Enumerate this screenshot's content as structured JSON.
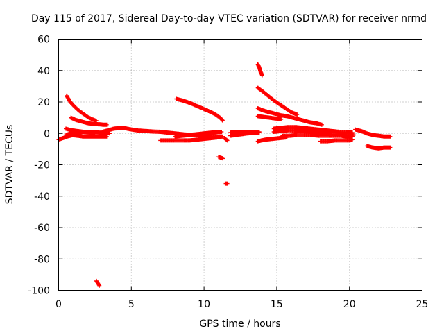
{
  "chart_data": {
    "type": "scatter",
    "title": "Day 115 of 2017, Sidereal Day-to-day VTEC variation (SDTVAR) for receiver nrmd",
    "xlabel": "GPS time / hours",
    "ylabel": "SDTVAR / TECUs",
    "xlim": [
      0,
      25
    ],
    "ylim": [
      -100,
      60
    ],
    "xticks": [
      0,
      5,
      10,
      15,
      20,
      25
    ],
    "yticks": [
      -100,
      -80,
      -60,
      -40,
      -20,
      0,
      20,
      40,
      60
    ],
    "grid": true,
    "legend": "none",
    "marker": "+",
    "color": "#ff0000",
    "segments": [
      {
        "x": [
          0.0,
          0.3,
          0.6,
          1.0
        ],
        "y": [
          -4,
          -3,
          -2,
          -1
        ]
      },
      {
        "x": [
          0.5,
          0.9,
          1.3,
          1.7,
          2.1,
          2.5
        ],
        "y": [
          3,
          2,
          1.5,
          1,
          0.5,
          0
        ]
      },
      {
        "x": [
          0.5,
          0.8,
          1.2,
          1.6,
          2.0,
          2.4,
          2.8,
          3.2,
          3.5
        ],
        "y": [
          -1,
          0,
          0.5,
          0.8,
          1,
          1,
          0.5,
          0.5,
          0
        ]
      },
      {
        "x": [
          0.55,
          0.8,
          1.1,
          1.4,
          1.7,
          2.0,
          2.3,
          2.6
        ],
        "y": [
          24,
          20,
          17,
          14.5,
          12.5,
          10.5,
          9,
          8
        ]
      },
      {
        "x": [
          0.85,
          1.2,
          1.6,
          2.0,
          2.4,
          2.8,
          3.1,
          3.3
        ],
        "y": [
          10,
          8.5,
          7.5,
          6.5,
          6,
          5.8,
          5.5,
          5.5
        ]
      },
      {
        "x": [
          0.9,
          1.3,
          1.7,
          2.1,
          2.5,
          2.9,
          3.3
        ],
        "y": [
          -1,
          -1.5,
          -2,
          -2,
          -2,
          -2,
          -2
        ]
      },
      {
        "x": [
          2.6,
          2.7,
          2.8
        ],
        "y": [
          -94,
          -95.5,
          -97
        ]
      },
      {
        "x": [
          3.0,
          3.4,
          3.8,
          4.2,
          4.6,
          5.0,
          5.5,
          6.0,
          6.5,
          7.0,
          7.5,
          8.0,
          8.5,
          9.0,
          9.5,
          10.0,
          10.5,
          11.0,
          11.3
        ],
        "y": [
          1,
          2,
          3,
          3.5,
          3.2,
          2.5,
          1.8,
          1.5,
          1.2,
          1,
          0.5,
          0,
          -0.5,
          -1,
          -1.2,
          -1.5,
          -1.8,
          -2,
          -2
        ]
      },
      {
        "x": [
          7.0,
          7.5,
          8.0,
          8.5,
          9.0,
          9.5,
          10.0,
          10.5,
          11.0,
          11.2
        ],
        "y": [
          -4.5,
          -4.5,
          -4.5,
          -4.5,
          -4.5,
          -4,
          -3.5,
          -3,
          -2.5,
          -2
        ]
      },
      {
        "x": [
          8.0,
          8.5,
          9.0,
          9.5,
          10.0,
          10.5,
          10.9,
          11.2
        ],
        "y": [
          -2,
          -1.5,
          -1,
          -0.5,
          0,
          0.5,
          0.8,
          1
        ]
      },
      {
        "x": [
          8.1,
          8.5,
          9.0,
          9.5,
          10.0,
          10.5,
          10.8,
          11.1,
          11.3
        ],
        "y": [
          22,
          21,
          19.5,
          17.5,
          15.5,
          13.5,
          12,
          10,
          8
        ]
      },
      {
        "x": [
          11.4,
          11.6
        ],
        "y": [
          -3,
          -4.5
        ]
      },
      {
        "x": [
          11.0,
          11.3
        ],
        "y": [
          -15,
          -16
        ]
      },
      {
        "x": [
          11.5,
          11.6
        ],
        "y": [
          -32,
          -32
        ]
      },
      {
        "x": [
          11.8,
          12.2,
          12.6,
          13.0,
          13.4,
          13.8
        ],
        "y": [
          -1.5,
          -1,
          -0.5,
          0,
          0.5,
          0.5
        ]
      },
      {
        "x": [
          11.8,
          12.2,
          12.6,
          13.0,
          13.4,
          13.8
        ],
        "y": [
          0.5,
          0.8,
          1,
          1,
          1,
          1
        ]
      },
      {
        "x": [
          13.7,
          13.8,
          13.9,
          14.0
        ],
        "y": [
          44,
          42,
          39,
          37
        ]
      },
      {
        "x": [
          13.7,
          14.0,
          14.4,
          14.8,
          15.2,
          15.6,
          16.0,
          16.4
        ],
        "y": [
          29,
          27,
          24,
          21,
          18.5,
          16,
          13.5,
          12
        ]
      },
      {
        "x": [
          13.7,
          14.1,
          14.5,
          14.9,
          15.3,
          15.7,
          16.1,
          16.5,
          16.9,
          17.3,
          17.7,
          18.1
        ],
        "y": [
          16,
          14.5,
          13.5,
          12.5,
          11.5,
          11,
          10,
          9,
          8,
          7,
          6.5,
          5.5
        ]
      },
      {
        "x": [
          13.7,
          14.1,
          14.5,
          14.9,
          15.3
        ],
        "y": [
          11,
          10.5,
          10,
          9.5,
          9
        ]
      },
      {
        "x": [
          13.7,
          14.2,
          14.7,
          15.2,
          15.7
        ],
        "y": [
          -5,
          -4,
          -3.5,
          -3,
          -2.5
        ]
      },
      {
        "x": [
          14.8,
          15.3,
          15.8,
          16.3,
          16.8,
          17.3,
          17.8,
          18.3,
          18.8,
          19.3,
          19.8,
          20.2
        ],
        "y": [
          3,
          3.5,
          4,
          4,
          3.5,
          3,
          2.5,
          2,
          1.5,
          1,
          0.8,
          0.5
        ]
      },
      {
        "x": [
          14.8,
          15.3,
          15.8,
          16.3,
          16.8,
          17.3,
          17.8,
          18.3,
          18.8,
          19.3,
          19.8,
          20.3
        ],
        "y": [
          1,
          1.5,
          2,
          1.8,
          1.5,
          1,
          0.5,
          0,
          -0.5,
          -0.5,
          -1,
          -1
        ]
      },
      {
        "x": [
          15.4,
          15.9,
          16.4,
          16.9,
          17.4,
          17.9,
          18.4,
          18.9,
          19.4,
          19.8,
          20.2
        ],
        "y": [
          -1.5,
          -1.5,
          -1,
          -1,
          -1,
          -1.5,
          -1.5,
          -1.5,
          -1.5,
          -2,
          -2
        ]
      },
      {
        "x": [
          18.0,
          18.5,
          19.0,
          19.5,
          20.0,
          20.2
        ],
        "y": [
          -5,
          -5,
          -4.5,
          -4.5,
          -4.5,
          -4
        ]
      },
      {
        "x": [
          20.4,
          20.8,
          21.2,
          21.6,
          22.0,
          22.4,
          22.8
        ],
        "y": [
          2.5,
          1.5,
          0,
          -1,
          -1.5,
          -2,
          -2
        ]
      },
      {
        "x": [
          21.2,
          21.6,
          22.0,
          22.4,
          22.8
        ],
        "y": [
          -8,
          -9,
          -9.5,
          -9,
          -9
        ]
      }
    ]
  }
}
